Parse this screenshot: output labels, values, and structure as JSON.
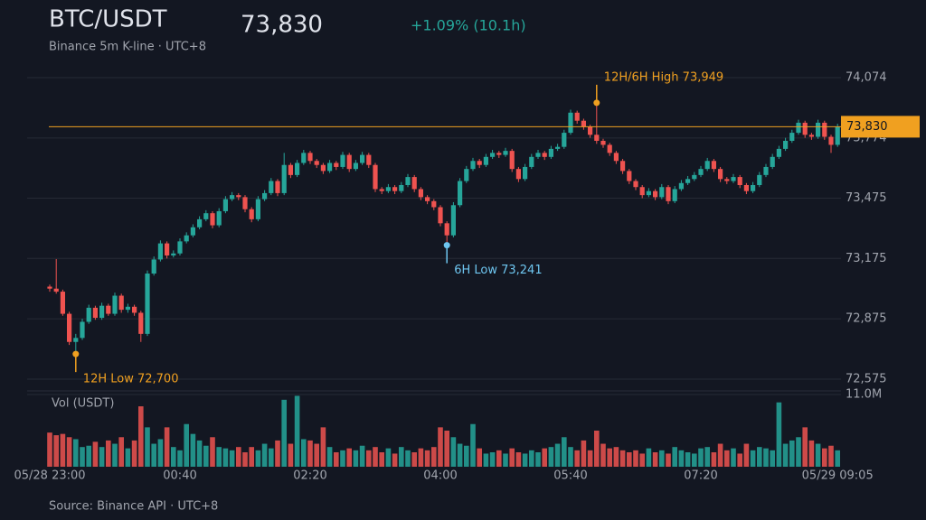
{
  "chart_data": {
    "type": "candlestick",
    "title": "BTC/USDT",
    "subtitle": "Binance 5m K-line · UTC+8",
    "price": {
      "value": 73830,
      "label": "73,830"
    },
    "change": "+1.09% (10.1h)",
    "footer": "Source: Binance API · UTC+8",
    "volume_label": "Vol (USDT)",
    "up_color": "#26a69a",
    "down_color": "#ef5350",
    "price_line_color": "#f0a020",
    "grid": true,
    "categories": [
      "05/28 23:00",
      null,
      null,
      null,
      null,
      null,
      null,
      null,
      null,
      null,
      null,
      null,
      null,
      null,
      null,
      null,
      null,
      null,
      null,
      null,
      "00:40",
      null,
      null,
      null,
      null,
      null,
      null,
      null,
      null,
      null,
      null,
      null,
      null,
      null,
      null,
      null,
      null,
      null,
      null,
      null,
      "02:20",
      null,
      null,
      null,
      null,
      null,
      null,
      null,
      null,
      null,
      null,
      null,
      null,
      null,
      null,
      null,
      null,
      null,
      null,
      null,
      "04:00",
      null,
      null,
      null,
      null,
      null,
      null,
      null,
      null,
      null,
      null,
      null,
      null,
      null,
      null,
      null,
      null,
      null,
      null,
      null,
      "05:40",
      null,
      null,
      null,
      null,
      null,
      null,
      null,
      null,
      null,
      null,
      null,
      null,
      null,
      null,
      null,
      null,
      null,
      null,
      null,
      "07:20",
      null,
      null,
      null,
      null,
      null,
      null,
      null,
      null,
      null,
      null,
      null,
      null,
      null,
      null,
      null,
      null,
      null,
      null,
      null,
      null,
      "05/29 09:05"
    ],
    "candles": [
      [
        73035,
        73045,
        73010,
        73025
      ],
      [
        73025,
        73172,
        73000,
        73010
      ],
      [
        73010,
        73020,
        72890,
        72900
      ],
      [
        72900,
        72910,
        72745,
        72760
      ],
      [
        72760,
        72800,
        72700,
        72780
      ],
      [
        72780,
        72875,
        72770,
        72860
      ],
      [
        72860,
        72945,
        72850,
        72930
      ],
      [
        72930,
        72940,
        72870,
        72880
      ],
      [
        72880,
        72955,
        72870,
        72940
      ],
      [
        72940,
        72950,
        72890,
        72900
      ],
      [
        72900,
        73005,
        72890,
        72990
      ],
      [
        72990,
        73000,
        72905,
        72920
      ],
      [
        72920,
        72950,
        72905,
        72935
      ],
      [
        72935,
        72945,
        72890,
        72905
      ],
      [
        72905,
        72915,
        72760,
        72800
      ],
      [
        72800,
        73115,
        72790,
        73100
      ],
      [
        73100,
        73185,
        73090,
        73170
      ],
      [
        73170,
        73265,
        73160,
        73250
      ],
      [
        73250,
        73260,
        73175,
        73190
      ],
      [
        73190,
        73215,
        73180,
        73200
      ],
      [
        73200,
        73275,
        73190,
        73260
      ],
      [
        73260,
        73305,
        73250,
        73290
      ],
      [
        73290,
        73345,
        73280,
        73330
      ],
      [
        73330,
        73385,
        73320,
        73370
      ],
      [
        73370,
        73415,
        73360,
        73400
      ],
      [
        73400,
        73410,
        73325,
        73340
      ],
      [
        73340,
        73425,
        73330,
        73410
      ],
      [
        73410,
        73485,
        73400,
        73470
      ],
      [
        73470,
        73505,
        73460,
        73490
      ],
      [
        73490,
        73500,
        73465,
        73480
      ],
      [
        73480,
        73490,
        73405,
        73420
      ],
      [
        73420,
        73430,
        73355,
        73370
      ],
      [
        73370,
        73485,
        73360,
        73470
      ],
      [
        73470,
        73515,
        73460,
        73500
      ],
      [
        73500,
        73575,
        73490,
        73560
      ],
      [
        73560,
        73570,
        73485,
        73500
      ],
      [
        73500,
        73700,
        73490,
        73640
      ],
      [
        73640,
        73650,
        73575,
        73590
      ],
      [
        73590,
        73665,
        73580,
        73650
      ],
      [
        73650,
        73715,
        73640,
        73700
      ],
      [
        73700,
        73710,
        73645,
        73660
      ],
      [
        73660,
        73670,
        73625,
        73640
      ],
      [
        73640,
        73650,
        73595,
        73610
      ],
      [
        73610,
        73665,
        73600,
        73650
      ],
      [
        73650,
        73660,
        73615,
        73630
      ],
      [
        73630,
        73705,
        73620,
        73690
      ],
      [
        73690,
        73700,
        73605,
        73620
      ],
      [
        73620,
        73665,
        73610,
        73650
      ],
      [
        73650,
        73705,
        73640,
        73690
      ],
      [
        73690,
        73700,
        73625,
        73640
      ],
      [
        73640,
        73650,
        73505,
        73520
      ],
      [
        73520,
        73530,
        73495,
        73510
      ],
      [
        73510,
        73545,
        73500,
        73530
      ],
      [
        73530,
        73540,
        73495,
        73510
      ],
      [
        73510,
        73555,
        73500,
        73540
      ],
      [
        73540,
        73595,
        73530,
        73580
      ],
      [
        73580,
        73590,
        73505,
        73520
      ],
      [
        73520,
        73530,
        73465,
        73480
      ],
      [
        73480,
        73490,
        73445,
        73460
      ],
      [
        73460,
        73470,
        73415,
        73430
      ],
      [
        73430,
        73440,
        73335,
        73350
      ],
      [
        73350,
        73360,
        73241,
        73290
      ],
      [
        73290,
        73455,
        73280,
        73440
      ],
      [
        73440,
        73575,
        73430,
        73560
      ],
      [
        73560,
        73635,
        73550,
        73620
      ],
      [
        73620,
        73675,
        73610,
        73660
      ],
      [
        73660,
        73670,
        73625,
        73640
      ],
      [
        73640,
        73695,
        73630,
        73680
      ],
      [
        73680,
        73715,
        73670,
        73700
      ],
      [
        73700,
        73710,
        73675,
        73690
      ],
      [
        73690,
        73725,
        73680,
        73710
      ],
      [
        73710,
        73720,
        73605,
        73620
      ],
      [
        73620,
        73630,
        73555,
        73570
      ],
      [
        73570,
        73645,
        73560,
        73630
      ],
      [
        73630,
        73695,
        73620,
        73680
      ],
      [
        73680,
        73715,
        73670,
        73700
      ],
      [
        73700,
        73710,
        73665,
        73680
      ],
      [
        73680,
        73735,
        73670,
        73720
      ],
      [
        73720,
        73745,
        73710,
        73730
      ],
      [
        73730,
        73815,
        73720,
        73800
      ],
      [
        73800,
        73915,
        73790,
        73900
      ],
      [
        73900,
        73910,
        73845,
        73860
      ],
      [
        73860,
        73870,
        73815,
        73830
      ],
      [
        73830,
        73840,
        73775,
        73790
      ],
      [
        73790,
        73949,
        73745,
        73760
      ],
      [
        73760,
        73770,
        73725,
        73740
      ],
      [
        73740,
        73750,
        73685,
        73700
      ],
      [
        73700,
        73710,
        73645,
        73660
      ],
      [
        73660,
        73670,
        73595,
        73610
      ],
      [
        73610,
        73620,
        73545,
        73560
      ],
      [
        73560,
        73570,
        73515,
        73530
      ],
      [
        73530,
        73540,
        73475,
        73490
      ],
      [
        73490,
        73525,
        73480,
        73510
      ],
      [
        73510,
        73520,
        73465,
        73480
      ],
      [
        73480,
        73545,
        73470,
        73530
      ],
      [
        73530,
        73540,
        73445,
        73460
      ],
      [
        73460,
        73535,
        73450,
        73520
      ],
      [
        73520,
        73565,
        73510,
        73550
      ],
      [
        73550,
        73585,
        73540,
        73570
      ],
      [
        73570,
        73605,
        73560,
        73590
      ],
      [
        73590,
        73635,
        73580,
        73620
      ],
      [
        73620,
        73675,
        73610,
        73660
      ],
      [
        73660,
        73670,
        73605,
        73620
      ],
      [
        73620,
        73630,
        73555,
        73570
      ],
      [
        73570,
        73580,
        73545,
        73560
      ],
      [
        73560,
        73595,
        73550,
        73580
      ],
      [
        73580,
        73590,
        73525,
        73540
      ],
      [
        73540,
        73550,
        73495,
        73510
      ],
      [
        73510,
        73555,
        73500,
        73540
      ],
      [
        73540,
        73605,
        73530,
        73590
      ],
      [
        73590,
        73645,
        73580,
        73630
      ],
      [
        73630,
        73695,
        73620,
        73680
      ],
      [
        73680,
        73735,
        73670,
        73720
      ],
      [
        73720,
        73775,
        73710,
        73760
      ],
      [
        73760,
        73815,
        73750,
        73800
      ],
      [
        73800,
        73865,
        73790,
        73850
      ],
      [
        73850,
        73860,
        73775,
        73790
      ],
      [
        73790,
        73800,
        73765,
        73780
      ],
      [
        73780,
        73865,
        73770,
        73850
      ],
      [
        73850,
        73860,
        73765,
        73780
      ],
      [
        73780,
        73790,
        73700,
        73740
      ],
      [
        73740,
        73845,
        73730,
        73830
      ]
    ],
    "volumes": [
      5.2,
      4.8,
      5.0,
      4.5,
      4.2,
      3.0,
      3.2,
      3.8,
      3.0,
      4.0,
      3.5,
      4.5,
      2.8,
      4.0,
      9.2,
      6.0,
      3.5,
      4.2,
      6.0,
      3.0,
      2.5,
      6.5,
      5.0,
      4.0,
      3.2,
      4.5,
      3.0,
      2.8,
      2.5,
      3.0,
      2.2,
      3.0,
      2.5,
      3.5,
      2.8,
      4.0,
      10.2,
      3.5,
      10.8,
      4.2,
      4.0,
      3.5,
      6.0,
      3.0,
      2.2,
      2.5,
      2.8,
      2.5,
      3.2,
      2.5,
      3.0,
      2.2,
      2.8,
      2.0,
      3.0,
      2.5,
      2.2,
      2.8,
      2.5,
      3.0,
      6.0,
      5.5,
      4.5,
      3.5,
      3.2,
      6.5,
      2.8,
      2.0,
      2.2,
      2.5,
      2.0,
      2.8,
      2.2,
      2.0,
      2.5,
      2.2,
      2.8,
      3.0,
      3.5,
      4.5,
      3.0,
      2.5,
      4.0,
      2.5,
      5.5,
      3.5,
      2.8,
      3.0,
      2.5,
      2.2,
      2.5,
      2.0,
      2.8,
      2.2,
      2.5,
      2.0,
      3.0,
      2.5,
      2.2,
      2.0,
      2.8,
      3.0,
      2.2,
      3.5,
      2.5,
      2.8,
      2.0,
      3.5,
      2.5,
      3.0,
      2.8,
      2.5,
      9.8,
      3.5,
      4.0,
      4.5,
      6.0,
      4.0,
      3.5,
      2.8,
      3.2,
      2.5
    ],
    "ylim": [
      72530,
      74146
    ],
    "yticks": [
      {
        "value": 72575,
        "label": "72,575"
      },
      {
        "value": 72875,
        "label": "72,875"
      },
      {
        "value": 73175,
        "label": "73,175"
      },
      {
        "value": 73475,
        "label": "73,475"
      },
      {
        "value": 73774,
        "label": "73,774"
      },
      {
        "value": 74074,
        "label": "74,074"
      }
    ],
    "vlim": [
      0,
      11
    ],
    "vticks": [
      {
        "value": 11,
        "label": "11.0M"
      }
    ],
    "annotations": [
      {
        "text": "12H/6H High 73,949",
        "value": 73949,
        "color": "#f0a020"
      },
      {
        "text": "6H Low 73,241",
        "value": 73241,
        "color": "#6ec6f0"
      },
      {
        "text": "12H Low 72,700",
        "value": 72700,
        "color": "#f0a020"
      }
    ]
  }
}
